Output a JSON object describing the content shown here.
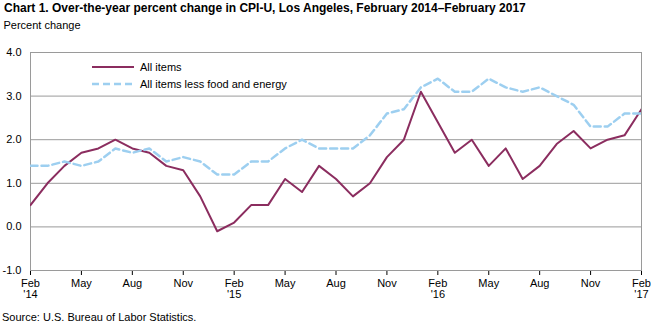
{
  "chart_data": {
    "type": "line",
    "title": "Chart 1. Over-the-year percent change in CPI-U, Los Angeles, February 2014–February 2017",
    "ylabel": "Percent change",
    "source": "Source: U.S. Bureau of Labor Statistics.",
    "categories": [
      "Feb\n'14",
      null,
      null,
      "May",
      null,
      null,
      "Aug",
      null,
      null,
      "Nov",
      null,
      null,
      "Feb\n'15",
      null,
      null,
      "May",
      null,
      null,
      "Aug",
      null,
      null,
      "Nov",
      null,
      null,
      "Feb\n'16",
      null,
      null,
      "May",
      null,
      null,
      "Aug",
      null,
      null,
      "Nov",
      null,
      null,
      "Feb\n'17"
    ],
    "series": [
      {
        "name": "All items",
        "color": "#8b2d5f",
        "line_style": "solid",
        "values": [
          0.5,
          1.0,
          1.4,
          1.7,
          1.8,
          2.0,
          1.8,
          1.7,
          1.4,
          1.3,
          0.7,
          -0.1,
          0.1,
          0.5,
          0.5,
          1.1,
          0.8,
          1.4,
          1.1,
          0.7,
          1.0,
          1.6,
          2.0,
          3.1,
          2.4,
          1.7,
          2.0,
          1.4,
          1.8,
          1.1,
          1.4,
          1.9,
          2.2,
          1.8,
          2.0,
          2.1,
          2.7
        ]
      },
      {
        "name": "All items less food and energy",
        "color": "#9dcff0",
        "line_style": "dashed",
        "values": [
          1.4,
          1.4,
          1.5,
          1.4,
          1.5,
          1.8,
          1.7,
          1.8,
          1.5,
          1.6,
          1.5,
          1.2,
          1.2,
          1.5,
          1.5,
          1.8,
          2.0,
          1.8,
          1.8,
          1.8,
          2.1,
          2.6,
          2.7,
          3.2,
          3.4,
          3.1,
          3.1,
          3.4,
          3.2,
          3.1,
          3.2,
          3.0,
          2.8,
          2.3,
          2.3,
          2.6,
          2.6
        ]
      }
    ],
    "ylim": [
      -1,
      4
    ],
    "yticks": [
      {
        "value": -1,
        "label": "-1.0"
      },
      {
        "value": 0,
        "label": "0.0"
      },
      {
        "value": 1,
        "label": "1.0"
      },
      {
        "value": 2,
        "label": "2.0"
      },
      {
        "value": 3,
        "label": "3.0"
      },
      {
        "value": 4,
        "label": "4.0"
      }
    ],
    "grid": true,
    "legend": "top-left"
  }
}
